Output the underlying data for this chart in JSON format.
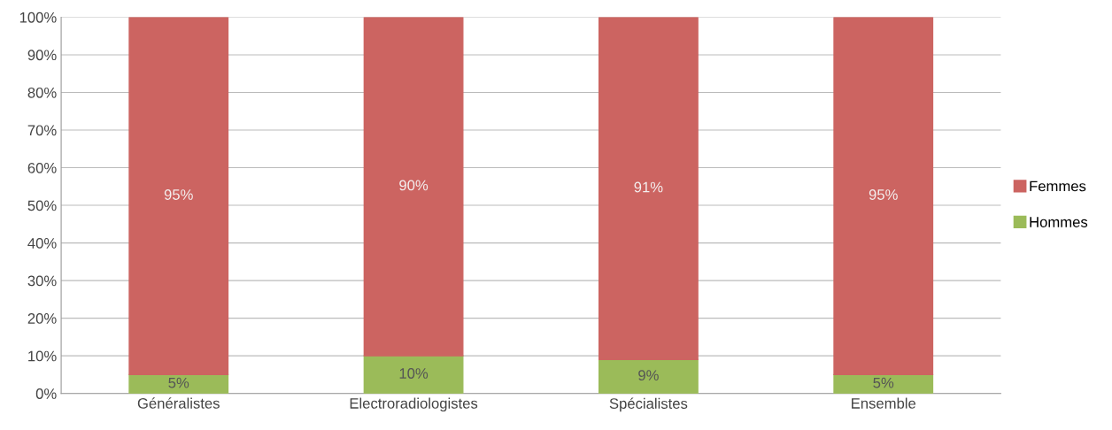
{
  "chart_data": {
    "type": "bar",
    "stacked": true,
    "categories": [
      "Généralistes",
      "Electroradiologistes",
      "Spécialistes",
      "Ensemble"
    ],
    "series": [
      {
        "name": "Hommes",
        "color": "#9bbb59",
        "values": [
          5,
          10,
          9,
          5
        ],
        "value_labels": [
          "5%",
          "10%",
          "9%",
          "5%"
        ]
      },
      {
        "name": "Femmes",
        "color": "#cc6461",
        "values": [
          95,
          90,
          91,
          95
        ],
        "value_labels": [
          "95%",
          "90%",
          "91%",
          "95%"
        ]
      }
    ],
    "ylim": [
      0,
      100
    ],
    "yticks": [
      {
        "value": 0,
        "label": "0%"
      },
      {
        "value": 10,
        "label": "10%"
      },
      {
        "value": 20,
        "label": "20%"
      },
      {
        "value": 30,
        "label": "30%"
      },
      {
        "value": 40,
        "label": "40%"
      },
      {
        "value": 50,
        "label": "50%"
      },
      {
        "value": 60,
        "label": "60%"
      },
      {
        "value": 70,
        "label": "70%"
      },
      {
        "value": 80,
        "label": "80%"
      },
      {
        "value": 90,
        "label": "90%"
      },
      {
        "value": 100,
        "label": "100%"
      }
    ],
    "grid": "y",
    "legend": "right"
  }
}
